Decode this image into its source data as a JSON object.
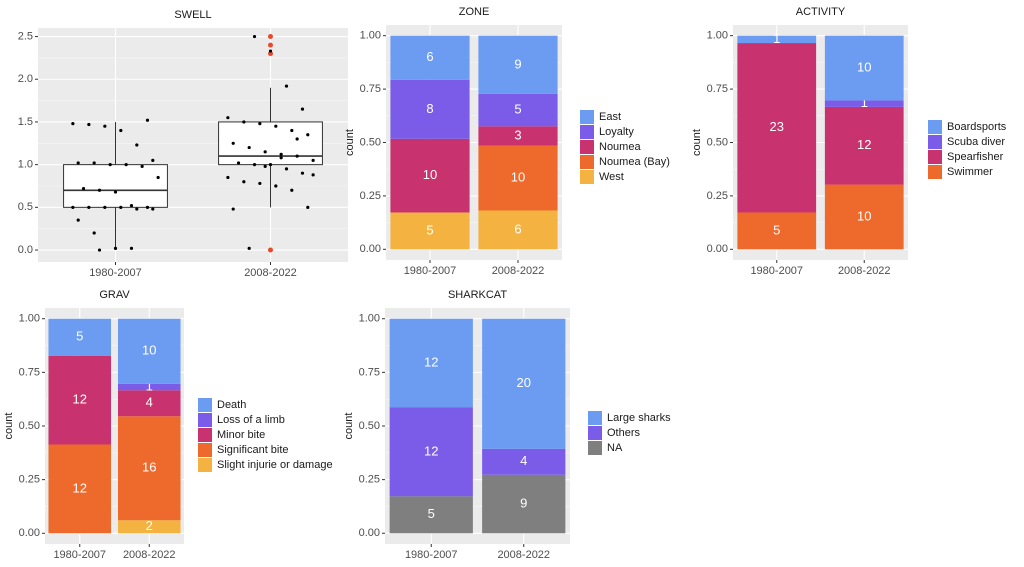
{
  "chart_data": [
    {
      "type": "box",
      "title": "SWELL",
      "categories": [
        "1980-2007",
        "2008-2022"
      ],
      "q1": [
        0.5,
        1.0
      ],
      "median": [
        0.7,
        1.1
      ],
      "q3": [
        1.0,
        1.5
      ],
      "whisker_low": [
        0,
        0.5
      ],
      "whisker_high": [
        1.5,
        1.9
      ],
      "outliers": [
        [],
        [
          2.5,
          2.4,
          2.3,
          0
        ]
      ],
      "points": [
        [
          0,
          0.02,
          0.02,
          1.52,
          1.48,
          1.47,
          1.45,
          1.4,
          1.23,
          1.05,
          1.02,
          1.02,
          1.0,
          1.0,
          0.98,
          0.85,
          0.72,
          0.7,
          0.68,
          0.52,
          0.5,
          0.5,
          0.5,
          0.5,
          0.5,
          0.48,
          0.48,
          0.35,
          0.2
        ],
        [
          2.5,
          2.33,
          1.92,
          1.65,
          1.55,
          1.5,
          1.48,
          1.45,
          1.4,
          1.35,
          1.25,
          1.2,
          1.15,
          1.12,
          1.1,
          1.05,
          1.02,
          1.0,
          1.0,
          0.95,
          0.9,
          0.85,
          0.8,
          0.78,
          0.75,
          0.7,
          0.5,
          0.48,
          0.02,
          0.98,
          1.08,
          1.3,
          0.88
        ]
      ],
      "box_color": "#ffffff",
      "point_color": "#000000",
      "outlier_color": "#e8492b",
      "ylim": [
        -0.14,
        2.6
      ],
      "yticks": [
        {
          "value": 0,
          "label": "0.0"
        },
        {
          "value": 0.5,
          "label": "0.5"
        },
        {
          "value": 1,
          "label": "1.0"
        },
        {
          "value": 1.5,
          "label": "1.5"
        },
        {
          "value": 2,
          "label": "2.0"
        },
        {
          "value": 2.5,
          "label": "2.5"
        }
      ],
      "grid": true
    },
    {
      "type": "bar",
      "position": "fill",
      "title": "ZONE",
      "ylabel": "count",
      "categories": [
        "1980-2007",
        "2008-2022"
      ],
      "series": [
        {
          "name": "East",
          "color": "#6b9cf2",
          "values": [
            6,
            9
          ]
        },
        {
          "name": "Loyalty",
          "color": "#7b5ce8",
          "values": [
            8,
            5
          ]
        },
        {
          "name": "Noumea",
          "color": "#c8336f",
          "values": [
            10,
            3
          ]
        },
        {
          "name": "Noumea (Bay)",
          "color": "#ee6a2c",
          "values": [
            null,
            10
          ]
        },
        {
          "name": "West",
          "color": "#f4b340",
          "values": [
            5,
            6
          ]
        }
      ],
      "ylim": [
        -0.05,
        1.05
      ],
      "yticks": [
        {
          "value": 0,
          "label": "0.00"
        },
        {
          "value": 0.25,
          "label": "0.25"
        },
        {
          "value": 0.5,
          "label": "0.50"
        },
        {
          "value": 0.75,
          "label": "0.75"
        },
        {
          "value": 1,
          "label": "1.00"
        }
      ],
      "grid": true,
      "legend": "right"
    },
    {
      "type": "bar",
      "position": "fill",
      "title": "ACTIVITY",
      "ylabel": "count",
      "categories": [
        "1980-2007",
        "2008-2022"
      ],
      "series": [
        {
          "name": "Boardsports",
          "color": "#6b9cf2",
          "values": [
            1,
            10
          ]
        },
        {
          "name": "Scuba diver",
          "color": "#7b5ce8",
          "values": [
            null,
            1
          ]
        },
        {
          "name": "Spearfisher",
          "color": "#c8336f",
          "values": [
            23,
            12
          ]
        },
        {
          "name": "Swimmer",
          "color": "#ee6a2c",
          "values": [
            5,
            10
          ]
        }
      ],
      "ylim": [
        -0.05,
        1.05
      ],
      "yticks": [
        {
          "value": 0,
          "label": "0.00"
        },
        {
          "value": 0.25,
          "label": "0.25"
        },
        {
          "value": 0.5,
          "label": "0.50"
        },
        {
          "value": 0.75,
          "label": "0.75"
        },
        {
          "value": 1,
          "label": "1.00"
        }
      ],
      "grid": true,
      "legend": "right"
    },
    {
      "type": "bar",
      "position": "fill",
      "title": "GRAV",
      "ylabel": "count",
      "categories": [
        "1980-2007",
        "2008-2022"
      ],
      "series": [
        {
          "name": "Death",
          "color": "#6b9cf2",
          "values": [
            5,
            10
          ]
        },
        {
          "name": "Loss of a limb",
          "color": "#7b5ce8",
          "values": [
            null,
            1
          ]
        },
        {
          "name": "Minor bite",
          "color": "#c8336f",
          "values": [
            12,
            4
          ]
        },
        {
          "name": "Significant bite",
          "color": "#ee6a2c",
          "values": [
            12,
            16
          ]
        },
        {
          "name": "Slight injurie or damage",
          "color": "#f4b340",
          "values": [
            null,
            2
          ]
        }
      ],
      "ylim": [
        -0.05,
        1.05
      ],
      "yticks": [
        {
          "value": 0,
          "label": "0.00"
        },
        {
          "value": 0.25,
          "label": "0.25"
        },
        {
          "value": 0.5,
          "label": "0.50"
        },
        {
          "value": 0.75,
          "label": "0.75"
        },
        {
          "value": 1,
          "label": "1.00"
        }
      ],
      "grid": true,
      "legend": "right"
    },
    {
      "type": "bar",
      "position": "fill",
      "title": "SHARKCAT",
      "ylabel": "count",
      "categories": [
        "1980-2007",
        "2008-2022"
      ],
      "series": [
        {
          "name": "Large sharks",
          "color": "#6b9cf2",
          "values": [
            12,
            20
          ]
        },
        {
          "name": "Others",
          "color": "#7b5ce8",
          "values": [
            12,
            4
          ]
        },
        {
          "name": "NA",
          "color": "#7f7f7f",
          "values": [
            5,
            9
          ]
        }
      ],
      "ylim": [
        -0.05,
        1.05
      ],
      "yticks": [
        {
          "value": 0,
          "label": "0.00"
        },
        {
          "value": 0.25,
          "label": "0.25"
        },
        {
          "value": 0.5,
          "label": "0.50"
        },
        {
          "value": 0.75,
          "label": "0.75"
        },
        {
          "value": 1,
          "label": "1.00"
        }
      ],
      "grid": true,
      "legend": "right"
    }
  ]
}
